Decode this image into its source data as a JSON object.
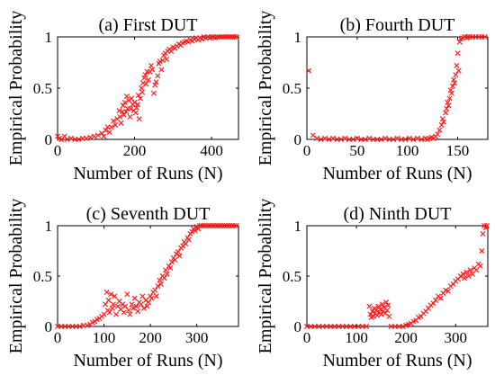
{
  "colors": {
    "marker": "#ff1a1a",
    "axis": "#000000"
  },
  "chart_data": [
    {
      "type": "scatter",
      "title": "(a) First DUT",
      "xlabel": "Number of Runs (N)",
      "ylabel": "Empirical Probability",
      "xlim": [
        0,
        470
      ],
      "ylim": [
        0,
        1
      ],
      "xticks": [
        0,
        200,
        400
      ],
      "xtick_labels": [
        "0",
        "200",
        "400"
      ],
      "yticks": [
        0,
        0.5,
        1
      ],
      "ytick_labels": [
        "0",
        "0.5",
        "1"
      ],
      "marker": "x",
      "points": [
        [
          0,
          0.03
        ],
        [
          5,
          0.01
        ],
        [
          10,
          0.0
        ],
        [
          18,
          0.03
        ],
        [
          25,
          0.0
        ],
        [
          35,
          0.01
        ],
        [
          45,
          0.0
        ],
        [
          55,
          0.0
        ],
        [
          65,
          0.01
        ],
        [
          75,
          0.01
        ],
        [
          85,
          0.02
        ],
        [
          95,
          0.03
        ],
        [
          105,
          0.04
        ],
        [
          115,
          0.06
        ],
        [
          120,
          0.03
        ],
        [
          125,
          0.09
        ],
        [
          130,
          0.12
        ],
        [
          135,
          0.07
        ],
        [
          140,
          0.12
        ],
        [
          145,
          0.18
        ],
        [
          150,
          0.14
        ],
        [
          155,
          0.2
        ],
        [
          160,
          0.28
        ],
        [
          162,
          0.22
        ],
        [
          165,
          0.16
        ],
        [
          168,
          0.27
        ],
        [
          170,
          0.33
        ],
        [
          172,
          0.24
        ],
        [
          175,
          0.36
        ],
        [
          178,
          0.27
        ],
        [
          180,
          0.42
        ],
        [
          182,
          0.3
        ],
        [
          185,
          0.38
        ],
        [
          188,
          0.22
        ],
        [
          190,
          0.3
        ],
        [
          192,
          0.4
        ],
        [
          195,
          0.34
        ],
        [
          198,
          0.28
        ],
        [
          200,
          0.36
        ],
        [
          203,
          0.26
        ],
        [
          205,
          0.31
        ],
        [
          208,
          0.34
        ],
        [
          210,
          0.43
        ],
        [
          212,
          0.2
        ],
        [
          215,
          0.4
        ],
        [
          218,
          0.5
        ],
        [
          220,
          0.46
        ],
        [
          222,
          0.55
        ],
        [
          225,
          0.6
        ],
        [
          228,
          0.63
        ],
        [
          230,
          0.54
        ],
        [
          233,
          0.66
        ],
        [
          236,
          0.58
        ],
        [
          240,
          0.66
        ],
        [
          243,
          0.72
        ],
        [
          246,
          0.68
        ],
        [
          250,
          0.45
        ],
        [
          253,
          0.53
        ],
        [
          256,
          0.56
        ],
        [
          260,
          0.62
        ],
        [
          263,
          0.74
        ],
        [
          266,
          0.76
        ],
        [
          270,
          0.68
        ],
        [
          273,
          0.77
        ],
        [
          276,
          0.82
        ],
        [
          280,
          0.84
        ],
        [
          283,
          0.78
        ],
        [
          286,
          0.86
        ],
        [
          290,
          0.88
        ],
        [
          295,
          0.86
        ],
        [
          300,
          0.9
        ],
        [
          305,
          0.89
        ],
        [
          310,
          0.91
        ],
        [
          315,
          0.93
        ],
        [
          320,
          0.92
        ],
        [
          325,
          0.94
        ],
        [
          330,
          0.95
        ],
        [
          335,
          0.96
        ],
        [
          340,
          0.95
        ],
        [
          345,
          0.97
        ],
        [
          350,
          0.96
        ],
        [
          355,
          0.98
        ],
        [
          360,
          0.99
        ],
        [
          365,
          0.97
        ],
        [
          370,
          0.99
        ],
        [
          375,
          0.98
        ],
        [
          380,
          1.0
        ],
        [
          385,
          0.99
        ],
        [
          390,
          1.0
        ],
        [
          395,
          0.99
        ],
        [
          400,
          1.0
        ],
        [
          405,
          1.0
        ],
        [
          410,
          0.99
        ],
        [
          415,
          1.0
        ],
        [
          420,
          1.0
        ],
        [
          425,
          1.0
        ],
        [
          430,
          1.0
        ],
        [
          435,
          1.0
        ],
        [
          440,
          1.0
        ],
        [
          445,
          1.0
        ],
        [
          450,
          1.0
        ],
        [
          455,
          1.0
        ],
        [
          460,
          1.0
        ],
        [
          465,
          1.0
        ]
      ]
    },
    {
      "type": "scatter",
      "title": "(b) Fourth DUT",
      "xlabel": "Number of Runs (N)",
      "ylabel": "Empirical Probability",
      "xlim": [
        0,
        180
      ],
      "ylim": [
        0,
        1
      ],
      "xticks": [
        0,
        50,
        100,
        150
      ],
      "xtick_labels": [
        "0",
        "50",
        "100",
        "150"
      ],
      "yticks": [
        0,
        0.5,
        1
      ],
      "ytick_labels": [
        "0",
        "0.5",
        "1"
      ],
      "marker": "x",
      "points": [
        [
          2,
          0.67
        ],
        [
          6,
          0.04
        ],
        [
          10,
          0.01
        ],
        [
          14,
          0.0
        ],
        [
          18,
          0.01
        ],
        [
          22,
          0.0
        ],
        [
          26,
          0.01
        ],
        [
          30,
          0.0
        ],
        [
          34,
          0.0
        ],
        [
          38,
          0.01
        ],
        [
          42,
          0.0
        ],
        [
          46,
          0.0
        ],
        [
          50,
          0.01
        ],
        [
          54,
          0.0
        ],
        [
          58,
          0.0
        ],
        [
          62,
          0.01
        ],
        [
          66,
          0.0
        ],
        [
          70,
          0.0
        ],
        [
          74,
          0.0
        ],
        [
          78,
          0.01
        ],
        [
          82,
          0.0
        ],
        [
          86,
          0.0
        ],
        [
          90,
          0.01
        ],
        [
          94,
          0.0
        ],
        [
          98,
          0.0
        ],
        [
          102,
          0.01
        ],
        [
          106,
          0.0
        ],
        [
          110,
          0.01
        ],
        [
          114,
          0.0
        ],
        [
          118,
          0.01
        ],
        [
          120,
          0.0
        ],
        [
          122,
          0.01
        ],
        [
          124,
          0.02
        ],
        [
          126,
          0.01
        ],
        [
          128,
          0.03
        ],
        [
          130,
          0.05
        ],
        [
          132,
          0.09
        ],
        [
          134,
          0.14
        ],
        [
          135,
          0.2
        ],
        [
          136,
          0.17
        ],
        [
          138,
          0.26
        ],
        [
          139,
          0.3
        ],
        [
          140,
          0.36
        ],
        [
          141,
          0.33
        ],
        [
          142,
          0.4
        ],
        [
          143,
          0.48
        ],
        [
          144,
          0.45
        ],
        [
          145,
          0.52
        ],
        [
          146,
          0.58
        ],
        [
          147,
          0.55
        ],
        [
          148,
          0.63
        ],
        [
          149,
          0.72
        ],
        [
          150,
          0.84
        ],
        [
          151,
          0.67
        ],
        [
          152,
          0.95
        ],
        [
          153,
          0.98
        ],
        [
          155,
          0.99
        ],
        [
          157,
          1.0
        ],
        [
          159,
          0.99
        ],
        [
          160,
          1.0
        ],
        [
          162,
          1.0
        ],
        [
          165,
          1.0
        ],
        [
          168,
          1.0
        ],
        [
          171,
          1.0
        ],
        [
          174,
          1.0
        ],
        [
          177,
          1.0
        ]
      ]
    },
    {
      "type": "scatter",
      "title": "(c) Seventh DUT",
      "xlabel": "Number of Runs (N)",
      "ylabel": "Empirical Probability",
      "xlim": [
        0,
        390
      ],
      "ylim": [
        0,
        1
      ],
      "xticks": [
        0,
        100,
        200,
        300
      ],
      "xtick_labels": [
        "0",
        "100",
        "200",
        "300"
      ],
      "yticks": [
        0,
        0.5,
        1
      ],
      "ytick_labels": [
        "0",
        "0.5",
        "1"
      ],
      "marker": "x",
      "points": [
        [
          0,
          0.0
        ],
        [
          8,
          0.0
        ],
        [
          16,
          0.0
        ],
        [
          24,
          0.0
        ],
        [
          32,
          0.0
        ],
        [
          40,
          0.0
        ],
        [
          48,
          0.0
        ],
        [
          56,
          0.01
        ],
        [
          64,
          0.01
        ],
        [
          70,
          0.02
        ],
        [
          75,
          0.04
        ],
        [
          80,
          0.05
        ],
        [
          85,
          0.07
        ],
        [
          90,
          0.08
        ],
        [
          95,
          0.1
        ],
        [
          100,
          0.12
        ],
        [
          103,
          0.22
        ],
        [
          106,
          0.34
        ],
        [
          108,
          0.16
        ],
        [
          110,
          0.26
        ],
        [
          112,
          0.14
        ],
        [
          115,
          0.32
        ],
        [
          118,
          0.18
        ],
        [
          120,
          0.22
        ],
        [
          123,
          0.3
        ],
        [
          126,
          0.12
        ],
        [
          130,
          0.2
        ],
        [
          133,
          0.25
        ],
        [
          136,
          0.17
        ],
        [
          140,
          0.22
        ],
        [
          143,
          0.14
        ],
        [
          146,
          0.2
        ],
        [
          150,
          0.32
        ],
        [
          153,
          0.16
        ],
        [
          156,
          0.12
        ],
        [
          160,
          0.22
        ],
        [
          163,
          0.18
        ],
        [
          166,
          0.28
        ],
        [
          170,
          0.2
        ],
        [
          173,
          0.15
        ],
        [
          176,
          0.24
        ],
        [
          180,
          0.22
        ],
        [
          183,
          0.3
        ],
        [
          186,
          0.18
        ],
        [
          190,
          0.26
        ],
        [
          193,
          0.2
        ],
        [
          196,
          0.24
        ],
        [
          200,
          0.3
        ],
        [
          203,
          0.28
        ],
        [
          206,
          0.34
        ],
        [
          210,
          0.36
        ],
        [
          213,
          0.3
        ],
        [
          216,
          0.4
        ],
        [
          220,
          0.46
        ],
        [
          223,
          0.42
        ],
        [
          226,
          0.5
        ],
        [
          230,
          0.48
        ],
        [
          233,
          0.56
        ],
        [
          236,
          0.52
        ],
        [
          240,
          0.6
        ],
        [
          243,
          0.58
        ],
        [
          246,
          0.64
        ],
        [
          250,
          0.68
        ],
        [
          253,
          0.66
        ],
        [
          256,
          0.72
        ],
        [
          260,
          0.74
        ],
        [
          263,
          0.7
        ],
        [
          266,
          0.78
        ],
        [
          270,
          0.8
        ],
        [
          273,
          0.84
        ],
        [
          276,
          0.82
        ],
        [
          280,
          0.88
        ],
        [
          283,
          0.86
        ],
        [
          286,
          0.92
        ],
        [
          290,
          0.94
        ],
        [
          293,
          0.97
        ],
        [
          296,
          0.95
        ],
        [
          300,
          0.99
        ],
        [
          303,
          0.97
        ],
        [
          306,
          1.0
        ],
        [
          310,
          1.0
        ],
        [
          315,
          1.0
        ],
        [
          320,
          1.0
        ],
        [
          325,
          1.0
        ],
        [
          330,
          1.0
        ],
        [
          335,
          1.0
        ],
        [
          340,
          1.0
        ],
        [
          345,
          1.0
        ],
        [
          350,
          1.0
        ],
        [
          355,
          1.0
        ],
        [
          360,
          1.0
        ],
        [
          365,
          1.0
        ],
        [
          370,
          1.0
        ],
        [
          375,
          1.0
        ],
        [
          380,
          1.0
        ],
        [
          385,
          1.0
        ]
      ]
    },
    {
      "type": "scatter",
      "title": "(d) Ninth DUT",
      "xlabel": "Number of Runs (N)",
      "ylabel": "Empirical Probability",
      "xlim": [
        0,
        365
      ],
      "ylim": [
        0,
        1
      ],
      "xticks": [
        0,
        100,
        200,
        300
      ],
      "xtick_labels": [
        "0",
        "100",
        "200",
        "300"
      ],
      "yticks": [
        0,
        0.5,
        1
      ],
      "ytick_labels": [
        "0",
        "0.5",
        "1"
      ],
      "marker": "x",
      "points": [
        [
          0,
          0.0
        ],
        [
          8,
          0.0
        ],
        [
          16,
          0.0
        ],
        [
          24,
          0.0
        ],
        [
          32,
          0.0
        ],
        [
          40,
          0.0
        ],
        [
          48,
          0.0
        ],
        [
          56,
          0.0
        ],
        [
          64,
          0.0
        ],
        [
          72,
          0.0
        ],
        [
          80,
          0.0
        ],
        [
          88,
          0.0
        ],
        [
          96,
          0.0
        ],
        [
          104,
          0.0
        ],
        [
          112,
          0.0
        ],
        [
          120,
          0.0
        ],
        [
          126,
          0.2
        ],
        [
          128,
          0.12
        ],
        [
          130,
          0.09
        ],
        [
          132,
          0.15
        ],
        [
          134,
          0.1
        ],
        [
          136,
          0.18
        ],
        [
          138,
          0.13
        ],
        [
          140,
          0.16
        ],
        [
          142,
          0.11
        ],
        [
          144,
          0.2
        ],
        [
          146,
          0.14
        ],
        [
          148,
          0.17
        ],
        [
          150,
          0.12
        ],
        [
          152,
          0.22
        ],
        [
          154,
          0.15
        ],
        [
          156,
          0.19
        ],
        [
          158,
          0.13
        ],
        [
          160,
          0.24
        ],
        [
          162,
          0.16
        ],
        [
          164,
          0.21
        ],
        [
          166,
          0.1
        ],
        [
          170,
          0.0
        ],
        [
          178,
          0.0
        ],
        [
          186,
          0.0
        ],
        [
          194,
          0.0
        ],
        [
          200,
          0.01
        ],
        [
          205,
          0.02
        ],
        [
          210,
          0.03
        ],
        [
          215,
          0.05
        ],
        [
          220,
          0.06
        ],
        [
          225,
          0.09
        ],
        [
          230,
          0.1
        ],
        [
          235,
          0.13
        ],
        [
          240,
          0.15
        ],
        [
          245,
          0.18
        ],
        [
          250,
          0.21
        ],
        [
          255,
          0.23
        ],
        [
          260,
          0.26
        ],
        [
          265,
          0.3
        ],
        [
          270,
          0.28
        ],
        [
          275,
          0.33
        ],
        [
          280,
          0.36
        ],
        [
          285,
          0.35
        ],
        [
          290,
          0.4
        ],
        [
          295,
          0.42
        ],
        [
          300,
          0.45
        ],
        [
          305,
          0.47
        ],
        [
          310,
          0.5
        ],
        [
          315,
          0.52
        ],
        [
          318,
          0.48
        ],
        [
          322,
          0.54
        ],
        [
          326,
          0.5
        ],
        [
          330,
          0.56
        ],
        [
          334,
          0.52
        ],
        [
          338,
          0.58
        ],
        [
          342,
          0.56
        ],
        [
          346,
          0.62
        ],
        [
          350,
          0.6
        ],
        [
          353,
          0.75
        ],
        [
          355,
          0.92
        ],
        [
          358,
          1.0
        ],
        [
          361,
          0.98
        ],
        [
          363,
          1.0
        ]
      ]
    }
  ]
}
